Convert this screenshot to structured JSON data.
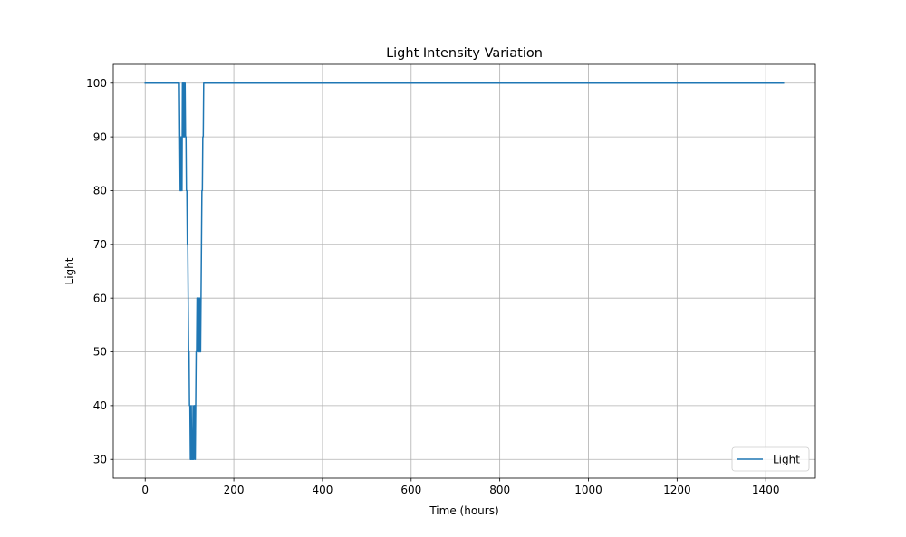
{
  "chart_data": {
    "type": "line",
    "title": "Light Intensity Variation",
    "xlabel": "Time (hours)",
    "ylabel": "Light",
    "xlim": [
      -72,
      1512
    ],
    "ylim": [
      26.5,
      103.5
    ],
    "xticks": [
      0,
      200,
      400,
      600,
      800,
      1000,
      1200,
      1400
    ],
    "xtick_labels": [
      "0",
      "200",
      "400",
      "600",
      "800",
      "1000",
      "1200",
      "1400"
    ],
    "yticks": [
      30,
      40,
      50,
      60,
      70,
      80,
      90,
      100
    ],
    "ytick_labels": [
      "30",
      "40",
      "50",
      "60",
      "70",
      "80",
      "90",
      "100"
    ],
    "grid": true,
    "legend_position": "lower-right",
    "series": [
      {
        "name": "Light",
        "color": "#1f77b4",
        "x": [
          0,
          77,
          78,
          79,
          80,
          81,
          82,
          83,
          84,
          85,
          86,
          87,
          88,
          89,
          90,
          91,
          92,
          93,
          94,
          95,
          96,
          97,
          98,
          99,
          100,
          101,
          102,
          103,
          104,
          105,
          106,
          107,
          108,
          109,
          110,
          111,
          112,
          113,
          114,
          115,
          116,
          117,
          118,
          119,
          120,
          121,
          122,
          123,
          124,
          125,
          126,
          127,
          128,
          129,
          130,
          131,
          132,
          133,
          134,
          135,
          1440
        ],
        "y": [
          100,
          100,
          90,
          80,
          80,
          90,
          90,
          80,
          100,
          90,
          100,
          90,
          100,
          90,
          100,
          90,
          90,
          80,
          80,
          70,
          70,
          60,
          50,
          50,
          40,
          40,
          30,
          30,
          40,
          30,
          30,
          30,
          40,
          30,
          30,
          40,
          40,
          30,
          40,
          50,
          50,
          60,
          60,
          50,
          50,
          60,
          50,
          60,
          50,
          50,
          60,
          70,
          80,
          80,
          90,
          90,
          100,
          100,
          100,
          100,
          100
        ]
      }
    ]
  }
}
